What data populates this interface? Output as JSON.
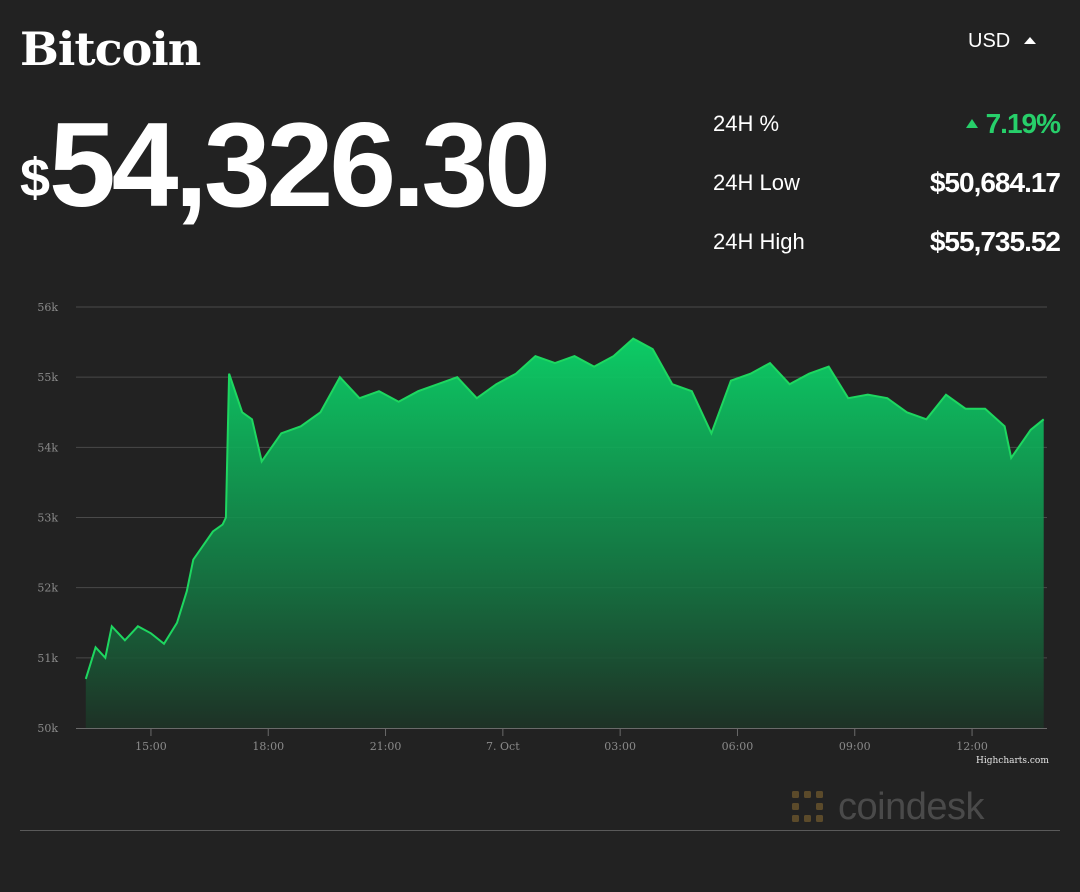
{
  "header": {
    "title": "Bitcoin",
    "currency": "USD"
  },
  "price": {
    "symbol": "$",
    "value": "54,326.30"
  },
  "stats": [
    {
      "label": "24H %",
      "value": "7.19%",
      "direction": "up"
    },
    {
      "label": "24H Low",
      "value": "$50,684.17"
    },
    {
      "label": "24H High",
      "value": "$55,735.52"
    }
  ],
  "colors": {
    "background": "#222222",
    "accent_green": "#27cf6a",
    "line_green": "#1ed760",
    "grid": "#4a4a4a"
  },
  "chart_data": {
    "type": "area",
    "xlabel": "",
    "ylabel": "",
    "ylim": [
      50000,
      56000
    ],
    "xlim": [
      "2021-10-06T13:05",
      "2021-10-07T13:55"
    ],
    "yticks": [
      50000,
      51000,
      52000,
      53000,
      54000,
      55000,
      56000
    ],
    "ytick_labels": [
      "50k",
      "51k",
      "52k",
      "53k",
      "54k",
      "55k",
      "56k"
    ],
    "xticks": [
      "2021-10-06T15:00",
      "2021-10-06T18:00",
      "2021-10-06T21:00",
      "2021-10-07T00:00",
      "2021-10-07T03:00",
      "2021-10-07T06:00",
      "2021-10-07T09:00",
      "2021-10-07T12:00"
    ],
    "xtick_labels": [
      "15:00",
      "18:00",
      "21:00",
      "7. Oct",
      "03:00",
      "06:00",
      "09:00",
      "12:00"
    ],
    "grid": true,
    "legend": "none",
    "series": [
      {
        "x": [
          "2021-10-06T13:20",
          "2021-10-06T13:35",
          "2021-10-06T13:50",
          "2021-10-06T14:00",
          "2021-10-06T14:20",
          "2021-10-06T14:40",
          "2021-10-06T15:00",
          "2021-10-06T15:20",
          "2021-10-06T15:40",
          "2021-10-06T15:55",
          "2021-10-06T16:05",
          "2021-10-06T16:20",
          "2021-10-06T16:35",
          "2021-10-06T16:50",
          "2021-10-06T16:55",
          "2021-10-06T17:00",
          "2021-10-06T17:20",
          "2021-10-06T17:35",
          "2021-10-06T17:50",
          "2021-10-06T18:20",
          "2021-10-06T18:50",
          "2021-10-06T19:20",
          "2021-10-06T19:50",
          "2021-10-06T20:20",
          "2021-10-06T20:50",
          "2021-10-06T21:20",
          "2021-10-06T21:50",
          "2021-10-06T22:20",
          "2021-10-06T22:50",
          "2021-10-06T23:20",
          "2021-10-06T23:50",
          "2021-10-07T00:20",
          "2021-10-07T00:50",
          "2021-10-07T01:20",
          "2021-10-07T01:50",
          "2021-10-07T02:20",
          "2021-10-07T02:50",
          "2021-10-07T03:20",
          "2021-10-07T03:50",
          "2021-10-07T04:20",
          "2021-10-07T04:50",
          "2021-10-07T05:20",
          "2021-10-07T05:50",
          "2021-10-07T06:20",
          "2021-10-07T06:50",
          "2021-10-07T07:20",
          "2021-10-07T07:50",
          "2021-10-07T08:20",
          "2021-10-07T08:50",
          "2021-10-07T09:20",
          "2021-10-07T09:50",
          "2021-10-07T10:20",
          "2021-10-07T10:50",
          "2021-10-07T11:20",
          "2021-10-07T11:50",
          "2021-10-07T12:20",
          "2021-10-07T12:50",
          "2021-10-07T13:00",
          "2021-10-07T13:30",
          "2021-10-07T13:50"
        ],
        "y": [
          50700,
          51150,
          51000,
          51450,
          51250,
          51450,
          51350,
          51200,
          51500,
          51950,
          52400,
          52600,
          52800,
          52900,
          53000,
          55050,
          54500,
          54400,
          53800,
          54200,
          54300,
          54500,
          55000,
          54700,
          54800,
          54650,
          54800,
          54900,
          55000,
          54700,
          54900,
          55050,
          55300,
          55200,
          55300,
          55150,
          55300,
          55550,
          55400,
          54900,
          54800,
          54200,
          54950,
          55050,
          55200,
          54900,
          55050,
          55150,
          54700,
          54750,
          54700,
          54500,
          54400,
          54750,
          54550,
          54550,
          54300,
          53850,
          54250,
          54400
        ]
      }
    ]
  }
}
